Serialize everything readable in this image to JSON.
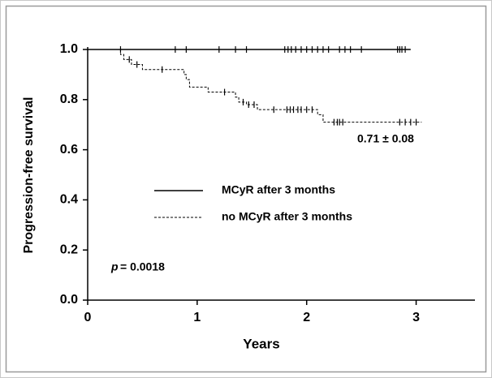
{
  "chart_data": {
    "type": "survival",
    "xlabel": "Years",
    "ylabel": "Progression-free survival",
    "xlim": [
      0,
      3.5
    ],
    "ylim": [
      0,
      1.0
    ],
    "xticks": [
      0,
      1,
      2,
      3
    ],
    "yticks": [
      {
        "value": 0,
        "label": "0.0"
      },
      0.2,
      0.4,
      0.6,
      0.8,
      {
        "value": 1,
        "label": "1.0"
      }
    ],
    "series": [
      {
        "name": "MCyR after 3 months",
        "color": "#000000",
        "line_style": "solid",
        "x": [
          0,
          2.95
        ],
        "values": [
          1,
          1
        ],
        "censor_x": [
          0.3,
          0.8,
          0.9,
          1.2,
          1.35,
          1.45,
          1.8,
          1.83,
          1.86,
          1.9,
          1.95,
          2.0,
          2.05,
          2.1,
          2.15,
          2.2,
          2.3,
          2.35,
          2.4,
          2.5,
          2.83,
          2.85,
          2.87,
          2.9
        ],
        "censor_y": [
          1,
          1,
          1,
          1,
          1,
          1,
          1,
          1,
          1,
          1,
          1,
          1,
          1,
          1,
          1,
          1,
          1,
          1,
          1,
          1,
          1,
          1,
          1,
          1
        ]
      },
      {
        "name": "no MCyR after 3 months",
        "color": "#000000",
        "line_style": "dashed",
        "x": [
          0,
          0.3,
          0.33,
          0.4,
          0.5,
          0.88,
          0.9,
          0.93,
          1.1,
          1.35,
          1.38,
          1.45,
          1.55,
          2.1,
          2.15,
          3.05
        ],
        "values": [
          1,
          0.98,
          0.96,
          0.94,
          0.92,
          0.9,
          0.88,
          0.85,
          0.83,
          0.81,
          0.79,
          0.78,
          0.76,
          0.74,
          0.71,
          0.71
        ],
        "censor_x": [
          0.38,
          0.45,
          0.68,
          1.25,
          1.42,
          1.47,
          1.52,
          1.7,
          1.82,
          1.85,
          1.88,
          1.92,
          1.95,
          2.0,
          2.05,
          2.25,
          2.28,
          2.3,
          2.33,
          2.85,
          2.9,
          2.95,
          3.0
        ],
        "censor_y": [
          0.96,
          0.94,
          0.92,
          0.83,
          0.79,
          0.78,
          0.78,
          0.76,
          0.76,
          0.76,
          0.76,
          0.76,
          0.76,
          0.76,
          0.76,
          0.71,
          0.71,
          0.71,
          0.71,
          0.71,
          0.71,
          0.71,
          0.71
        ]
      }
    ],
    "annotations": {
      "estimate": "0.71 ± 0.08",
      "p_symbol": "p",
      "p_value": "= 0.0018"
    }
  }
}
